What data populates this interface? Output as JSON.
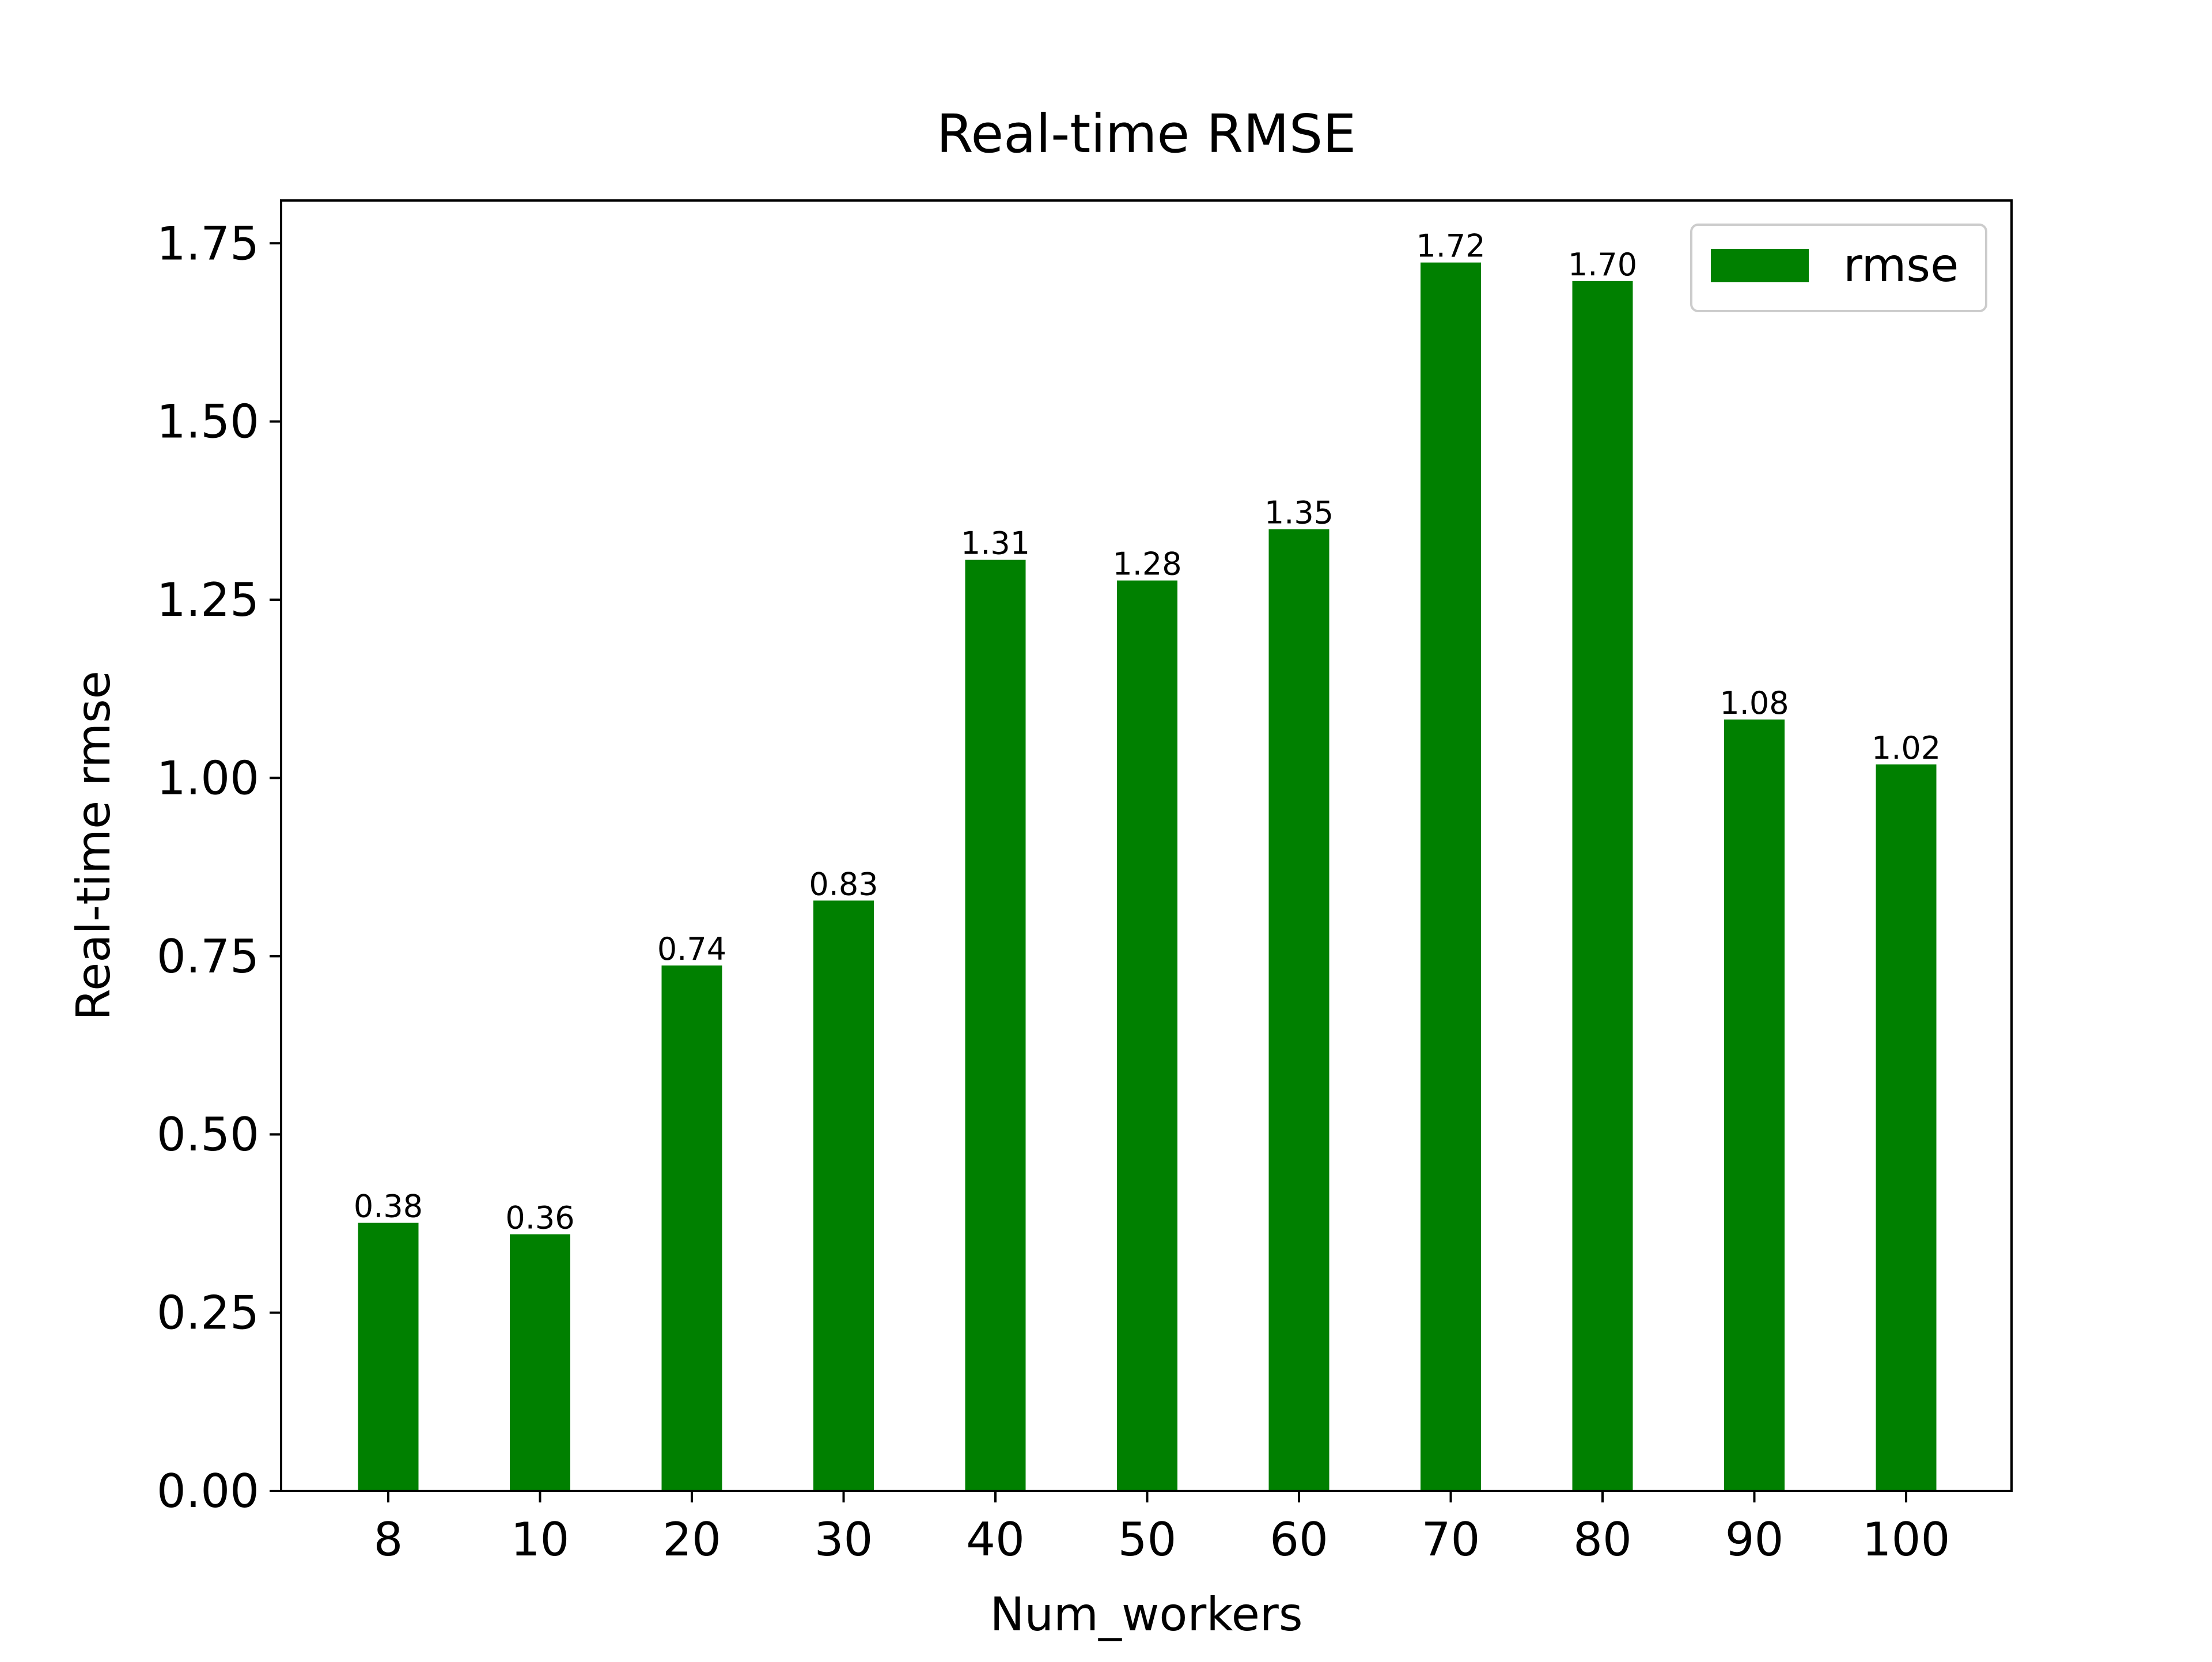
{
  "chart_data": {
    "type": "bar",
    "title": "Real-time RMSE",
    "xlabel": "Num_workers",
    "ylabel": "Real-time rmse",
    "categories": [
      "8",
      "10",
      "20",
      "30",
      "40",
      "50",
      "60",
      "70",
      "80",
      "90",
      "100"
    ],
    "series": [
      {
        "name": "rmse",
        "color": "#008000",
        "values": [
          0.376,
          0.36,
          0.737,
          0.828,
          1.306,
          1.277,
          1.349,
          1.723,
          1.697,
          1.082,
          1.019
        ],
        "value_labels": [
          "0.38",
          "0.36",
          "0.74",
          "0.83",
          "1.31",
          "1.28",
          "1.35",
          "1.72",
          "1.70",
          "1.08",
          "1.02"
        ]
      }
    ],
    "ylim": [
      0,
      1.81
    ],
    "yticks": [
      0.0,
      0.25,
      0.5,
      0.75,
      1.0,
      1.25,
      1.5,
      1.75
    ],
    "ytick_labels": [
      "0.00",
      "0.25",
      "0.50",
      "0.75",
      "1.00",
      "1.25",
      "1.50",
      "1.75"
    ],
    "grid": false,
    "legend": "top-right"
  }
}
